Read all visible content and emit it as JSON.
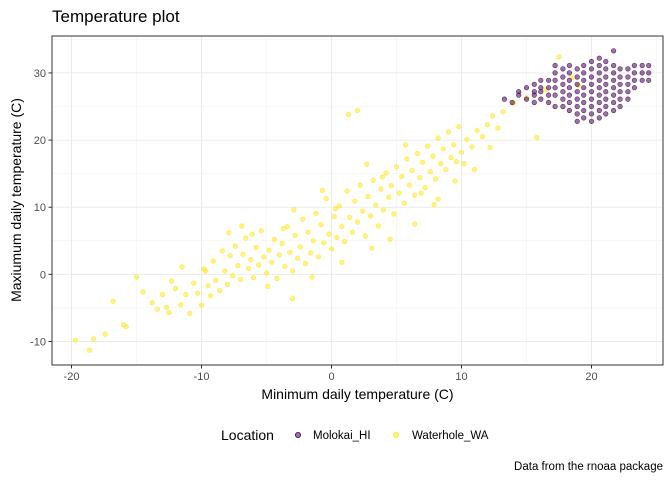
{
  "chart_data": {
    "type": "scatter",
    "title": "Temperature plot",
    "xlabel": "Minimum daily temperature (C)",
    "ylabel": "Maxiumum daily temperature (C)",
    "caption": "Data from the rnoaa package",
    "xlim": [
      -21.5,
      25.5
    ],
    "ylim": [
      -13.5,
      35.5
    ],
    "x_ticks": [
      -20,
      -10,
      0,
      10,
      20
    ],
    "y_ticks": [
      -10,
      0,
      10,
      20,
      30
    ],
    "x_tick_labels": [
      "-20",
      "-10",
      "0",
      "10",
      "20"
    ],
    "y_tick_labels": [
      "-10",
      "0",
      "10",
      "20",
      "30"
    ],
    "grid": true,
    "theme": "bw",
    "legend": {
      "title": "Location",
      "position": "bottom",
      "entries": [
        "Molokai_HI",
        "Waterhole_WA"
      ]
    },
    "colors": {
      "Molokai_HI": "#440154",
      "Waterhole_WA": "#FDE725"
    },
    "series": [
      {
        "name": "Molokai_HI",
        "color": "#440154",
        "points": [
          [
            13.3,
            26.1
          ],
          [
            13.9,
            25.6
          ],
          [
            14.4,
            27.2
          ],
          [
            14.4,
            26.7
          ],
          [
            15.0,
            27.8
          ],
          [
            15.0,
            26.1
          ],
          [
            15.6,
            28.3
          ],
          [
            15.6,
            26.7
          ],
          [
            15.6,
            25.6
          ],
          [
            16.1,
            27.8
          ],
          [
            16.1,
            27.2
          ],
          [
            16.1,
            26.1
          ],
          [
            16.7,
            28.9
          ],
          [
            16.7,
            27.8
          ],
          [
            16.7,
            26.7
          ],
          [
            16.7,
            25.6
          ],
          [
            17.2,
            30.0
          ],
          [
            17.2,
            28.9
          ],
          [
            17.2,
            27.8
          ],
          [
            17.2,
            26.7
          ],
          [
            17.2,
            25.0
          ],
          [
            17.8,
            30.6
          ],
          [
            17.8,
            29.4
          ],
          [
            17.8,
            28.3
          ],
          [
            17.8,
            27.2
          ],
          [
            17.8,
            26.1
          ],
          [
            17.8,
            25.0
          ],
          [
            18.3,
            31.1
          ],
          [
            18.3,
            30.0
          ],
          [
            18.3,
            28.9
          ],
          [
            18.3,
            27.8
          ],
          [
            18.3,
            26.7
          ],
          [
            18.3,
            25.6
          ],
          [
            18.3,
            24.4
          ],
          [
            18.9,
            30.6
          ],
          [
            18.9,
            29.4
          ],
          [
            18.9,
            28.3
          ],
          [
            18.9,
            27.2
          ],
          [
            18.9,
            26.1
          ],
          [
            18.9,
            25.0
          ],
          [
            18.9,
            23.9
          ],
          [
            18.9,
            22.8
          ],
          [
            19.4,
            31.1
          ],
          [
            19.4,
            30.0
          ],
          [
            19.4,
            28.9
          ],
          [
            19.4,
            27.8
          ],
          [
            19.4,
            26.7
          ],
          [
            19.4,
            25.6
          ],
          [
            19.4,
            24.4
          ],
          [
            19.4,
            23.3
          ],
          [
            20.0,
            31.7
          ],
          [
            20.0,
            30.6
          ],
          [
            20.0,
            29.4
          ],
          [
            20.0,
            28.3
          ],
          [
            20.0,
            27.2
          ],
          [
            20.0,
            26.1
          ],
          [
            20.0,
            25.0
          ],
          [
            20.0,
            23.9
          ],
          [
            20.0,
            22.8
          ],
          [
            20.6,
            32.2
          ],
          [
            20.6,
            31.1
          ],
          [
            20.6,
            30.0
          ],
          [
            20.6,
            28.9
          ],
          [
            20.6,
            27.8
          ],
          [
            20.6,
            26.7
          ],
          [
            20.6,
            25.6
          ],
          [
            20.6,
            24.4
          ],
          [
            20.6,
            23.3
          ],
          [
            21.1,
            31.7
          ],
          [
            21.1,
            30.6
          ],
          [
            21.1,
            29.4
          ],
          [
            21.1,
            28.3
          ],
          [
            21.1,
            27.2
          ],
          [
            21.1,
            26.1
          ],
          [
            21.1,
            25.0
          ],
          [
            21.1,
            23.9
          ],
          [
            21.7,
            31.1
          ],
          [
            21.7,
            30.0
          ],
          [
            21.7,
            28.9
          ],
          [
            21.7,
            27.8
          ],
          [
            21.7,
            26.7
          ],
          [
            21.7,
            25.6
          ],
          [
            21.7,
            24.4
          ],
          [
            22.2,
            30.6
          ],
          [
            22.2,
            29.4
          ],
          [
            22.2,
            28.3
          ],
          [
            22.2,
            27.2
          ],
          [
            22.2,
            26.1
          ],
          [
            22.2,
            25.0
          ],
          [
            22.8,
            30.6
          ],
          [
            22.8,
            29.4
          ],
          [
            22.8,
            28.3
          ],
          [
            22.8,
            27.2
          ],
          [
            22.8,
            26.1
          ],
          [
            23.3,
            31.1
          ],
          [
            23.3,
            30.0
          ],
          [
            23.3,
            28.9
          ],
          [
            23.3,
            27.8
          ],
          [
            23.9,
            31.1
          ],
          [
            23.9,
            30.0
          ],
          [
            23.9,
            28.9
          ],
          [
            24.4,
            31.1
          ],
          [
            24.4,
            30.0
          ],
          [
            24.4,
            28.9
          ],
          [
            21.7,
            33.3
          ],
          [
            17.2,
            31.1
          ],
          [
            16.1,
            28.9
          ],
          [
            15.6,
            27.2
          ]
        ]
      },
      {
        "name": "Waterhole_WA",
        "color": "#FDE725",
        "points": [
          [
            -19.7,
            -9.8
          ],
          [
            -18.6,
            -11.3
          ],
          [
            -18.3,
            -9.6
          ],
          [
            -17.4,
            -8.9
          ],
          [
            -16.8,
            -4.0
          ],
          [
            -15.8,
            -7.8
          ],
          [
            -15.0,
            -0.4
          ],
          [
            -14.5,
            -2.6
          ],
          [
            -13.8,
            -4.2
          ],
          [
            -13.0,
            -3.0
          ],
          [
            -12.7,
            -4.9
          ],
          [
            -12.3,
            -1.0
          ],
          [
            -12.0,
            -2.1
          ],
          [
            -11.6,
            -4.5
          ],
          [
            -11.2,
            -3.0
          ],
          [
            -10.9,
            -5.8
          ],
          [
            -10.6,
            -1.3
          ],
          [
            -10.3,
            -2.8
          ],
          [
            -10.0,
            -4.6
          ],
          [
            -9.8,
            0.8
          ],
          [
            -9.5,
            -1.7
          ],
          [
            -9.3,
            -3.2
          ],
          [
            -9.1,
            2.0
          ],
          [
            -8.9,
            -0.9
          ],
          [
            -8.6,
            -2.4
          ],
          [
            -8.4,
            3.5
          ],
          [
            -8.2,
            0.5
          ],
          [
            -8.0,
            -1.5
          ],
          [
            -7.8,
            2.8
          ],
          [
            -7.6,
            -0.2
          ],
          [
            -7.4,
            4.2
          ],
          [
            -7.2,
            1.3
          ],
          [
            -7.0,
            -0.8
          ],
          [
            -6.8,
            3.0
          ],
          [
            -6.6,
            5.4
          ],
          [
            -6.4,
            0.9
          ],
          [
            -6.2,
            2.2
          ],
          [
            -6.0,
            -0.5
          ],
          [
            -5.8,
            4.0
          ],
          [
            -5.6,
            1.4
          ],
          [
            -5.4,
            6.5
          ],
          [
            -5.2,
            2.6
          ],
          [
            -5.0,
            0.2
          ],
          [
            -4.8,
            3.6
          ],
          [
            -4.6,
            1.8
          ],
          [
            -4.4,
            5.2
          ],
          [
            -4.2,
            -0.6
          ],
          [
            -4.0,
            2.9
          ],
          [
            -3.8,
            4.6
          ],
          [
            -3.6,
            1.2
          ],
          [
            -3.4,
            7.1
          ],
          [
            -3.2,
            3.3
          ],
          [
            -3.0,
            0.5
          ],
          [
            -2.8,
            5.8
          ],
          [
            -2.6,
            2.4
          ],
          [
            -2.4,
            4.1
          ],
          [
            -2.2,
            8.2
          ],
          [
            -2.0,
            1.6
          ],
          [
            -1.8,
            6.3
          ],
          [
            -1.6,
            3.2
          ],
          [
            -1.4,
            5.0
          ],
          [
            -1.2,
            9.1
          ],
          [
            -1.0,
            2.6
          ],
          [
            -0.8,
            7.4
          ],
          [
            -0.6,
            4.7
          ],
          [
            -0.4,
            11.3
          ],
          [
            -0.2,
            6.0
          ],
          [
            0.0,
            3.8
          ],
          [
            0.2,
            8.6
          ],
          [
            0.4,
            5.5
          ],
          [
            0.6,
            10.2
          ],
          [
            0.8,
            7.1
          ],
          [
            1.0,
            4.9
          ],
          [
            1.2,
            12.4
          ],
          [
            1.4,
            8.5
          ],
          [
            1.6,
            6.3
          ],
          [
            1.8,
            10.9
          ],
          [
            2.0,
            7.8
          ],
          [
            2.2,
            13.3
          ],
          [
            2.4,
            9.4
          ],
          [
            2.6,
            5.7
          ],
          [
            2.8,
            11.6
          ],
          [
            3.0,
            8.7
          ],
          [
            3.2,
            14.0
          ],
          [
            3.4,
            10.3
          ],
          [
            3.6,
            7.2
          ],
          [
            3.8,
            12.7
          ],
          [
            4.0,
            9.6
          ],
          [
            4.2,
            15.1
          ],
          [
            4.4,
            11.5
          ],
          [
            4.6,
            13.2
          ],
          [
            4.8,
            9.0
          ],
          [
            5.0,
            16.0
          ],
          [
            5.2,
            12.1
          ],
          [
            5.4,
            14.6
          ],
          [
            5.6,
            10.6
          ],
          [
            5.8,
            17.2
          ],
          [
            6.0,
            13.3
          ],
          [
            6.2,
            15.5
          ],
          [
            6.4,
            11.8
          ],
          [
            6.6,
            18.0
          ],
          [
            6.8,
            14.4
          ],
          [
            7.0,
            16.7
          ],
          [
            7.2,
            12.9
          ],
          [
            7.4,
            19.1
          ],
          [
            7.6,
            15.3
          ],
          [
            7.8,
            17.6
          ],
          [
            8.0,
            14.2
          ],
          [
            8.2,
            20.3
          ],
          [
            8.4,
            16.5
          ],
          [
            8.6,
            18.7
          ],
          [
            8.8,
            15.6
          ],
          [
            9.0,
            21.2
          ],
          [
            9.2,
            17.4
          ],
          [
            9.4,
            19.3
          ],
          [
            9.6,
            16.8
          ],
          [
            9.8,
            22.0
          ],
          [
            10.0,
            18.2
          ],
          [
            10.4,
            20.1
          ],
          [
            10.8,
            19.0
          ],
          [
            11.2,
            21.4
          ],
          [
            11.6,
            20.5
          ],
          [
            12.0,
            22.3
          ],
          [
            12.4,
            23.6
          ],
          [
            12.8,
            21.8
          ],
          [
            13.2,
            24.2
          ],
          [
            14.0,
            25.5
          ],
          [
            15.0,
            26.3
          ],
          [
            15.8,
            20.4
          ],
          [
            16.5,
            27.5
          ],
          [
            17.5,
            32.4
          ],
          [
            18.5,
            29.3
          ],
          [
            19.0,
            28.1
          ],
          [
            1.3,
            23.8
          ],
          [
            2.0,
            24.4
          ],
          [
            -16.0,
            -7.5
          ],
          [
            -11.5,
            1.1
          ],
          [
            -6.9,
            7.2
          ],
          [
            4.5,
            5.2
          ],
          [
            6.4,
            7.5
          ],
          [
            8.2,
            11.2
          ],
          [
            -3.0,
            -3.6
          ],
          [
            -1.5,
            -0.4
          ],
          [
            0.8,
            1.8
          ],
          [
            -7.9,
            6.2
          ],
          [
            -9.7,
            0.5
          ],
          [
            -4.9,
            -1.8
          ],
          [
            3.1,
            3.9
          ],
          [
            9.5,
            13.9
          ],
          [
            11.0,
            15.6
          ],
          [
            -2.9,
            9.6
          ],
          [
            -0.7,
            12.5
          ],
          [
            2.7,
            16.4
          ],
          [
            5.7,
            19.3
          ],
          [
            7.9,
            10.4
          ],
          [
            -12.5,
            -5.7
          ],
          [
            -13.4,
            -5.2
          ],
          [
            -6.1,
            6.0
          ],
          [
            -3.7,
            6.8
          ],
          [
            0.3,
            9.8
          ],
          [
            3.9,
            14.5
          ],
          [
            6.9,
            12.1
          ],
          [
            10.2,
            16.5
          ],
          [
            12.2,
            18.9
          ]
        ]
      }
    ]
  }
}
